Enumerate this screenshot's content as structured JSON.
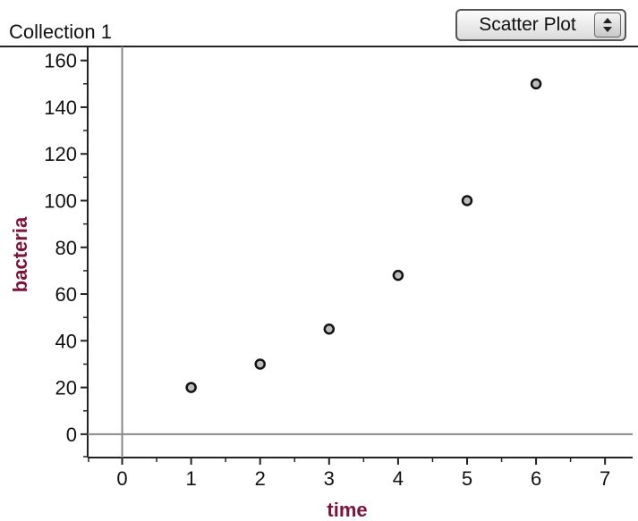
{
  "header": {
    "collection_title": "Collection 1",
    "plot_type": "Scatter Plot",
    "plot_type_arrows_icon": "up-down-arrows-icon"
  },
  "colors": {
    "axis_title": "#7a1538",
    "axis_line": "#888888",
    "point_fill": "#bdbdbd",
    "point_stroke": "#111111"
  },
  "chart_data": {
    "type": "scatter",
    "title": "",
    "xlabel": "time",
    "ylabel": "bacteria",
    "x": [
      1,
      2,
      3,
      4,
      5,
      6
    ],
    "y": [
      20,
      30,
      45,
      68,
      100,
      150
    ],
    "xlim": [
      -0.5,
      7.4
    ],
    "ylim": [
      -10,
      166
    ],
    "xticks": [
      0,
      1,
      2,
      3,
      4,
      5,
      6,
      7
    ],
    "xtick_labels": [
      "0",
      "1",
      "2",
      "3",
      "4",
      "5",
      "6",
      "7"
    ],
    "yticks": [
      0,
      20,
      40,
      60,
      80,
      100,
      120,
      140,
      160
    ],
    "ytick_labels": [
      "0",
      "20",
      "40",
      "60",
      "80",
      "100",
      "120",
      "140",
      "160"
    ],
    "grid": false,
    "legend": "none"
  }
}
